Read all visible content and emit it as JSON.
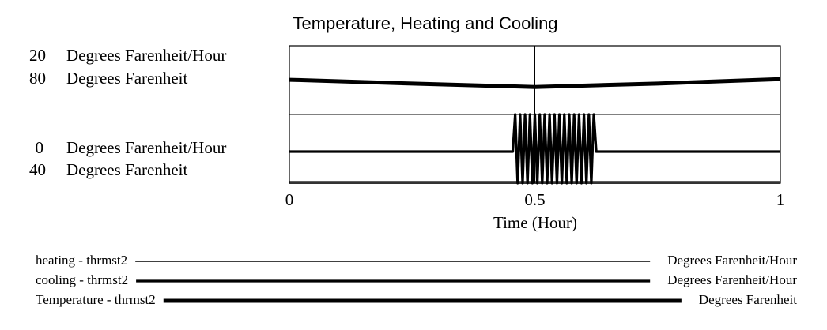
{
  "chart_data": {
    "type": "line",
    "title": "Temperature, Heating and Cooling",
    "xlabel": "Time (Hour)",
    "xlim": [
      0,
      1
    ],
    "xticks": [
      0,
      0.5,
      1
    ],
    "ylim": [
      0,
      20
    ],
    "y_unit": "Degrees Farenheit/Hour",
    "y2lim": [
      40,
      80
    ],
    "y2_unit": "Degrees Farenheit",
    "grid": true,
    "series": [
      {
        "name": "heating - thrmst2",
        "color": "#000000",
        "axis": "y",
        "x": [
          0,
          1
        ],
        "values": [
          0,
          0
        ]
      },
      {
        "name": "cooling - thrmst2",
        "color": "#000000",
        "axis": "y",
        "x": [
          0,
          0.455,
          0.46,
          0.465,
          0.47,
          0.475,
          0.48,
          0.485,
          0.49,
          0.495,
          0.5,
          0.505,
          0.51,
          0.515,
          0.52,
          0.525,
          0.53,
          0.535,
          0.54,
          0.545,
          0.55,
          0.555,
          0.56,
          0.565,
          0.57,
          0.575,
          0.58,
          0.585,
          0.59,
          0.595,
          0.6,
          0.605,
          0.61,
          0.615,
          0.62,
          0.625,
          1
        ],
        "values": [
          4.6,
          4.6,
          10,
          0,
          10,
          0,
          10,
          0,
          10,
          0,
          10,
          0,
          10,
          0,
          10,
          0,
          10,
          0,
          10,
          0,
          10,
          0,
          10,
          0,
          10,
          0,
          10,
          0,
          10,
          0,
          10,
          0,
          10,
          0,
          10,
          4.6,
          4.6
        ]
      },
      {
        "name": "Temperature - thrmst2",
        "color": "#000000",
        "axis": "y2",
        "x": [
          0,
          0.25,
          0.5,
          0.75,
          1
        ],
        "values": [
          70.1,
          69,
          68,
          69,
          70.3
        ]
      }
    ]
  }
}
